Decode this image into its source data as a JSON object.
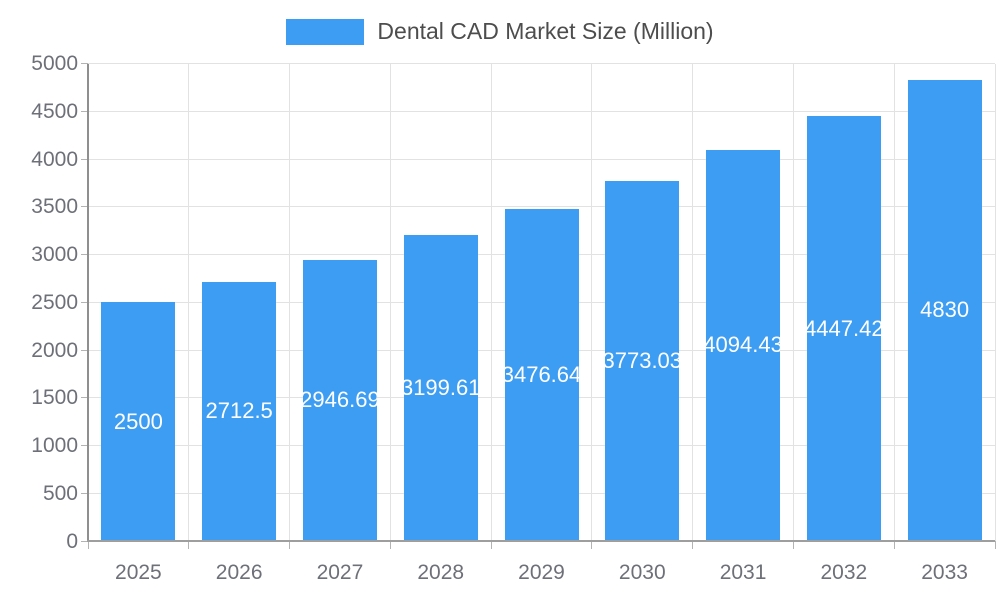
{
  "legend": {
    "label": "Dental CAD Market Size (Million)"
  },
  "chart_data": {
    "type": "bar",
    "title": "Dental CAD Market Size (Million)",
    "series_name": "Dental CAD Market Size (Million)",
    "categories": [
      "2025",
      "2026",
      "2027",
      "2028",
      "2029",
      "2030",
      "2031",
      "2032",
      "2033"
    ],
    "values": [
      2500,
      2712.5,
      2946.69,
      3199.61,
      3476.64,
      3773.03,
      4094.43,
      4447.42,
      4830
    ],
    "value_labels": [
      "2500",
      "2712.5",
      "2946.69",
      "3199.61",
      "3476.64",
      "3773.03",
      "4094.43",
      "4447.42",
      "4830"
    ],
    "xlabel": "",
    "ylabel": "",
    "ylim": [
      0,
      5000
    ],
    "ytick_step": 500,
    "ytick_labels": [
      "0",
      "500",
      "1000",
      "1500",
      "2000",
      "2500",
      "3000",
      "3500",
      "4000",
      "4500",
      "5000"
    ],
    "grid": true,
    "legend_position": "top-center",
    "bar_label_position": "inside-center"
  },
  "colors": {
    "background": "#FFFFFF",
    "bar": "#3D9DF3",
    "grid_line": "#E2E2E2",
    "y_axis_line": "#8F8F8F",
    "x_axis_line": "#9E9E9E",
    "tick": "#B3B3B3",
    "axis_label_text": "#6E7079",
    "legend_text": "#4D4D4D",
    "bar_label_text": "#FFFFFF"
  }
}
